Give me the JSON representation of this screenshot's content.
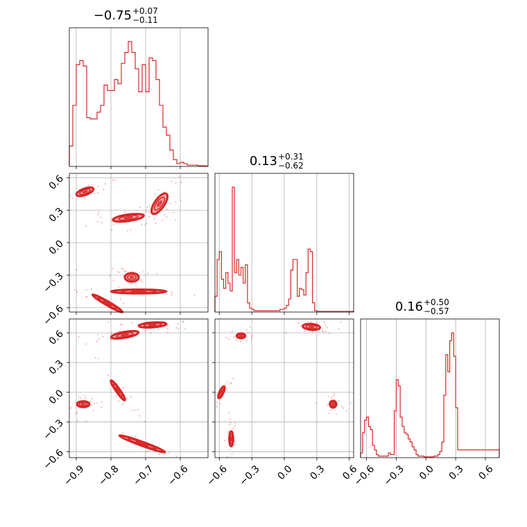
{
  "chart_data": {
    "type": "corner",
    "color": "#d62728",
    "parameters": [
      {
        "title": {
          "median": "−0.75",
          "plus": "+0.07",
          "minus": "−0.11"
        },
        "range": [
          -0.92,
          -0.52
        ]
      },
      {
        "title": {
          "median": "0.13",
          "plus": "+0.31",
          "minus": "−0.62"
        },
        "range": [
          -0.64,
          0.64
        ]
      },
      {
        "title": {
          "median": "0.16",
          "plus": "+0.50",
          "minus": "−0.57"
        },
        "range": [
          -0.66,
          0.74
        ]
      }
    ],
    "axis_ticks": {
      "x0": {
        "values": [
          -0.9,
          -0.8,
          -0.7,
          -0.6
        ],
        "labels": [
          "−0.9",
          "−0.8",
          "−0.7",
          "−0.6"
        ]
      },
      "x1": {
        "values": [
          -0.6,
          -0.3,
          0.0,
          0.3,
          0.6
        ],
        "labels": [
          "−0.6",
          "−0.3",
          "0.0",
          "0.3",
          "0.6"
        ]
      },
      "x2": {
        "values": [
          -0.6,
          -0.3,
          0.0,
          0.3,
          0.6
        ],
        "labels": [
          "−0.6",
          "−0.3",
          "0.0",
          "0.3",
          "0.6"
        ]
      },
      "y1": {
        "values": [
          -0.6,
          -0.3,
          0.0,
          0.3,
          0.6
        ],
        "labels": [
          "−0.6",
          "−0.3",
          "0.0",
          "0.3",
          "0.6"
        ]
      },
      "y2": {
        "values": [
          -0.6,
          -0.3,
          0.0,
          0.3,
          0.6
        ],
        "labels": [
          "−0.6",
          "−0.3",
          "0.0",
          "0.3",
          "0.6"
        ]
      }
    },
    "grid": true,
    "histograms": [
      {
        "param": 0,
        "bin_edges": [
          -0.92,
          -0.91,
          -0.9,
          -0.89,
          -0.88,
          -0.87,
          -0.86,
          -0.85,
          -0.84,
          -0.83,
          -0.82,
          -0.81,
          -0.8,
          -0.79,
          -0.78,
          -0.77,
          -0.76,
          -0.75,
          -0.74,
          -0.73,
          -0.72,
          -0.71,
          -0.7,
          -0.69,
          -0.68,
          -0.67,
          -0.66,
          -0.65,
          -0.64,
          -0.63,
          -0.62,
          -0.61,
          -0.6,
          -0.59,
          -0.58,
          -0.57,
          -0.56,
          -0.55,
          -0.54,
          -0.53,
          -0.52
        ],
        "counts": [
          0.15,
          0.45,
          0.75,
          0.78,
          0.74,
          0.36,
          0.35,
          0.35,
          0.4,
          0.45,
          0.6,
          0.56,
          0.56,
          0.64,
          0.61,
          0.76,
          0.84,
          0.92,
          0.84,
          0.72,
          0.55,
          0.75,
          0.55,
          0.8,
          0.78,
          0.64,
          0.45,
          0.29,
          0.23,
          0.12,
          0.05,
          0.02,
          0.03,
          0.02,
          0.01,
          0.01,
          0.01,
          0.005,
          0.005,
          0.004
        ]
      },
      {
        "param": 1,
        "bin_edges": [
          -0.64,
          -0.62,
          -0.6,
          -0.58,
          -0.56,
          -0.54,
          -0.52,
          -0.5,
          -0.48,
          -0.46,
          -0.44,
          -0.42,
          -0.4,
          -0.38,
          -0.36,
          -0.34,
          -0.32,
          -0.3,
          -0.28,
          -0.26,
          -0.24,
          -0.22,
          -0.2,
          -0.18,
          -0.16,
          -0.14,
          -0.12,
          -0.1,
          -0.08,
          -0.06,
          -0.04,
          -0.02,
          0.0,
          0.02,
          0.04,
          0.06,
          0.08,
          0.1,
          0.12,
          0.14,
          0.16,
          0.18,
          0.2,
          0.22,
          0.24,
          0.26,
          0.28,
          0.3,
          0.32,
          0.34,
          0.36,
          0.38,
          0.4,
          0.42,
          0.44,
          0.46,
          0.48,
          0.5,
          0.52,
          0.54,
          0.56,
          0.58,
          0.6,
          0.62,
          0.64
        ],
        "counts": [
          0.12,
          0.4,
          0.46,
          0.25,
          0.18,
          0.3,
          0.22,
          0.16,
          0.95,
          0.3,
          0.4,
          0.28,
          0.34,
          0.22,
          0.36,
          0.07,
          0.03,
          0.02,
          0.01,
          0.01,
          0.01,
          0.01,
          0.01,
          0.01,
          0.01,
          0.01,
          0.01,
          0.01,
          0.01,
          0.01,
          0.02,
          0.02,
          0.03,
          0.05,
          0.1,
          0.32,
          0.4,
          0.4,
          0.12,
          0.18,
          0.17,
          0.13,
          0.3,
          0.48,
          0.46,
          0.07,
          0.01,
          0.005,
          0.005,
          0.005,
          0.005,
          0.005,
          0.005,
          0.005,
          0.005,
          0.005,
          0.005,
          0.005,
          0.005,
          0.005,
          0.005,
          0.005,
          0.005,
          0.005
        ]
      },
      {
        "param": 2,
        "bin_edges": [
          -0.66,
          -0.64,
          -0.62,
          -0.6,
          -0.58,
          -0.56,
          -0.54,
          -0.52,
          -0.5,
          -0.48,
          -0.46,
          -0.44,
          -0.42,
          -0.4,
          -0.38,
          -0.36,
          -0.34,
          -0.32,
          -0.3,
          -0.28,
          -0.26,
          -0.24,
          -0.22,
          -0.2,
          -0.18,
          -0.16,
          -0.14,
          -0.12,
          -0.1,
          -0.08,
          -0.06,
          -0.04,
          -0.02,
          0.0,
          0.02,
          0.04,
          0.06,
          0.08,
          0.1,
          0.12,
          0.14,
          0.16,
          0.18,
          0.2,
          0.22,
          0.24,
          0.26,
          0.28,
          0.3,
          0.32,
          0.34,
          0.36,
          0.38,
          0.4,
          0.42,
          0.44,
          0.46,
          0.48,
          0.5,
          0.52,
          0.54,
          0.56,
          0.58,
          0.6,
          0.62,
          0.64,
          0.66,
          0.68,
          0.7,
          0.72,
          0.74
        ],
        "counts": [
          0.03,
          0.16,
          0.24,
          0.26,
          0.2,
          0.18,
          0.08,
          0.05,
          0.02,
          0.01,
          0.01,
          0.01,
          0.01,
          0.01,
          0.03,
          0.02,
          0.02,
          0.3,
          0.5,
          0.46,
          0.26,
          0.2,
          0.16,
          0.15,
          0.12,
          0.1,
          0.07,
          0.05,
          0.02,
          0.01,
          0.01,
          0.01,
          0.005,
          0.005,
          0.005,
          0.005,
          0.005,
          0.01,
          0.01,
          0.02,
          0.04,
          0.1,
          0.4,
          0.66,
          0.55,
          0.75,
          0.8,
          0.65,
          0.32,
          0.05,
          0.05,
          0.05,
          0.05,
          0.05,
          0.05,
          0.05,
          0.05,
          0.05,
          0.05,
          0.05,
          0.05,
          0.05,
          0.05,
          0.05,
          0.05,
          0.05,
          0.05,
          0.05,
          0.05,
          0.05
        ]
      }
    ],
    "joint_modes": [
      {
        "x_param": 0,
        "y_param": 1,
        "center": [
          -0.875,
          0.47
        ],
        "angle_deg": 20,
        "sx": 0.026,
        "sy": 0.03
      },
      {
        "x_param": 0,
        "y_param": 1,
        "center": [
          -0.75,
          0.23
        ],
        "angle_deg": 8,
        "sx": 0.045,
        "sy": 0.03
      },
      {
        "x_param": 0,
        "y_param": 1,
        "center": [
          -0.66,
          0.36
        ],
        "angle_deg": 55,
        "sx": 0.035,
        "sy": 0.045
      },
      {
        "x_param": 0,
        "y_param": 1,
        "center": [
          -0.74,
          -0.32
        ],
        "angle_deg": 0,
        "sx": 0.02,
        "sy": 0.04
      },
      {
        "x_param": 0,
        "y_param": 1,
        "center": [
          -0.72,
          -0.45
        ],
        "angle_deg": 0,
        "sx": 0.08,
        "sy": 0.018
      },
      {
        "x_param": 0,
        "y_param": 1,
        "center": [
          -0.81,
          -0.56
        ],
        "angle_deg": -30,
        "sx": 0.05,
        "sy": 0.018
      },
      {
        "x_param": 0,
        "y_param": 2,
        "center": [
          -0.68,
          0.68
        ],
        "angle_deg": 4,
        "sx": 0.04,
        "sy": 0.025
      },
      {
        "x_param": 0,
        "y_param": 2,
        "center": [
          -0.76,
          0.58
        ],
        "angle_deg": 10,
        "sx": 0.04,
        "sy": 0.03
      },
      {
        "x_param": 0,
        "y_param": 2,
        "center": [
          -0.88,
          -0.12
        ],
        "angle_deg": 0,
        "sx": 0.018,
        "sy": 0.03
      },
      {
        "x_param": 0,
        "y_param": 2,
        "center": [
          -0.78,
          0.02
        ],
        "angle_deg": -55,
        "sx": 0.035,
        "sy": 0.02
      },
      {
        "x_param": 0,
        "y_param": 2,
        "center": [
          -0.71,
          -0.52
        ],
        "angle_deg": -20,
        "sx": 0.07,
        "sy": 0.02
      },
      {
        "x_param": 1,
        "y_param": 2,
        "center": [
          0.25,
          0.66
        ],
        "angle_deg": -5,
        "sx": 0.08,
        "sy": 0.03
      },
      {
        "x_param": 1,
        "y_param": 2,
        "center": [
          -0.4,
          0.57
        ],
        "angle_deg": 0,
        "sx": 0.04,
        "sy": 0.025
      },
      {
        "x_param": 1,
        "y_param": 2,
        "center": [
          0.45,
          -0.12
        ],
        "angle_deg": 0,
        "sx": 0.03,
        "sy": 0.035
      },
      {
        "x_param": 1,
        "y_param": 2,
        "center": [
          -0.58,
          0.0
        ],
        "angle_deg": 65,
        "sx": 0.06,
        "sy": 0.02
      },
      {
        "x_param": 1,
        "y_param": 2,
        "center": [
          -0.49,
          -0.47
        ],
        "angle_deg": 90,
        "sx": 0.07,
        "sy": 0.02
      }
    ]
  }
}
